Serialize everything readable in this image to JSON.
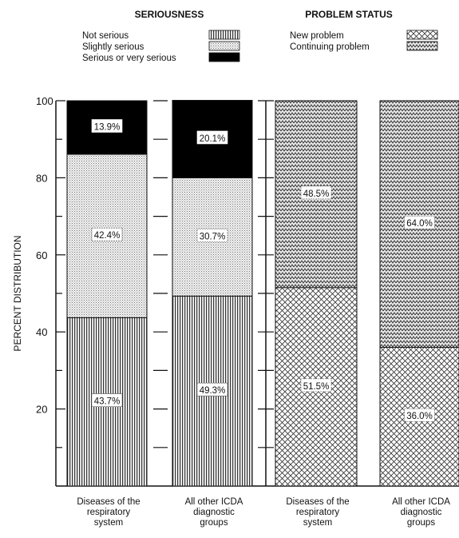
{
  "chart_data": {
    "type": "bar",
    "stacked": true,
    "ylabel": "PERCENT DISTRIBUTION",
    "ylim": [
      0,
      100
    ],
    "yticks": [
      20,
      40,
      60,
      80,
      100
    ],
    "panels": [
      {
        "title": "SERIOUSNESS",
        "legend": [
          "Not serious",
          "Slightly serious",
          "Serious or very serious"
        ],
        "categories": [
          [
            "Diseases of the",
            "respiratory",
            "system"
          ],
          [
            "All other ICDA",
            "diagnostic",
            "groups"
          ]
        ],
        "series": [
          {
            "name": "Not serious",
            "values": [
              43.7,
              49.3
            ],
            "labels": [
              "43.7%",
              "49.3%"
            ]
          },
          {
            "name": "Slightly serious",
            "values": [
              42.4,
              30.7
            ],
            "labels": [
              "42.4%",
              "30.7%"
            ]
          },
          {
            "name": "Serious or very serious",
            "values": [
              13.9,
              20.1
            ],
            "labels": [
              "13.9%",
              "20.1%"
            ]
          }
        ]
      },
      {
        "title": "PROBLEM STATUS",
        "legend": [
          "New problem",
          "Continuing problem"
        ],
        "categories": [
          [
            "Diseases of the",
            "respiratory",
            "system"
          ],
          [
            "All other ICDA",
            "diagnostic",
            "groups"
          ]
        ],
        "series": [
          {
            "name": "New problem",
            "values": [
              51.5,
              36.0
            ],
            "labels": [
              "51.5%",
              "36.0%"
            ]
          },
          {
            "name": "Continuing problem",
            "values": [
              48.5,
              64.0
            ],
            "labels": [
              "48.5%",
              "64.0%"
            ]
          }
        ]
      }
    ]
  }
}
